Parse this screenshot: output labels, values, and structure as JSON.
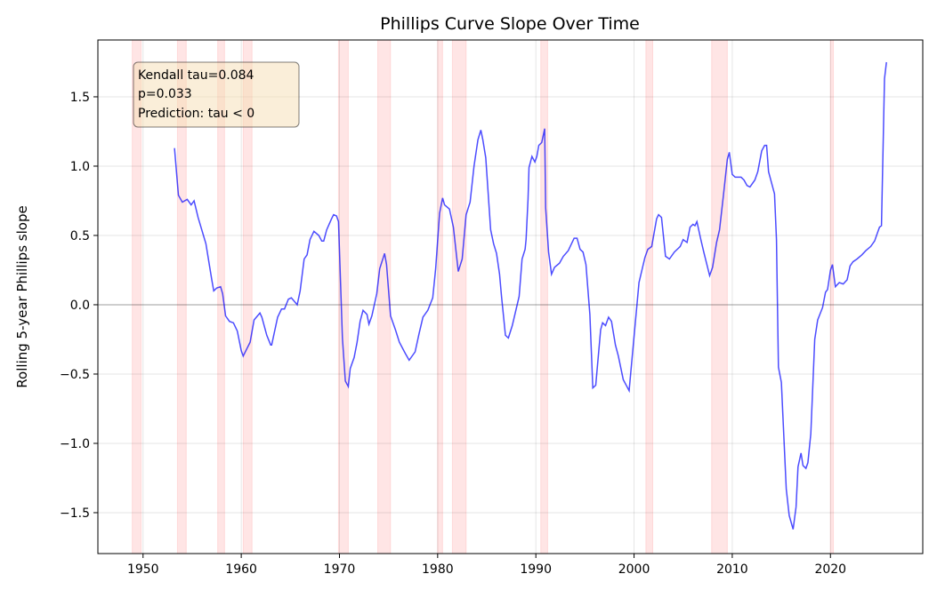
{
  "chart_data": {
    "type": "line",
    "title": "Phillips Curve Slope Over Time",
    "xlabel": "",
    "ylabel": "Rolling 5-year Phillips slope",
    "xlim": [
      1945.4,
      2029.4
    ],
    "ylim": [
      -1.795,
      1.91
    ],
    "xticks": [
      1950,
      1960,
      1970,
      1980,
      1990,
      2000,
      2010,
      2020
    ],
    "yticks": [
      -1.5,
      -1.0,
      -0.5,
      0.0,
      0.5,
      1.0,
      1.5
    ],
    "ytick_labels": [
      "−1.5",
      "−1.0",
      "−0.5",
      "0.0",
      "0.5",
      "1.0",
      "1.5"
    ],
    "grid": true,
    "reference_line_y": 0,
    "line_color": "#0000ff",
    "shading_color": "#ff0000",
    "annotation": [
      "Kendall tau=0.084",
      "p=0.033",
      "Prediction: tau < 0"
    ],
    "annotation_color": "#f5deb3",
    "shaded_periods": [
      [
        1948.9,
        1949.8
      ],
      [
        1953.5,
        1954.4
      ],
      [
        1957.6,
        1958.3
      ],
      [
        1960.2,
        1961.1
      ],
      [
        1969.9,
        1970.9
      ],
      [
        1973.9,
        1975.2
      ],
      [
        1980.0,
        1980.5
      ],
      [
        1981.5,
        1982.9
      ],
      [
        1990.5,
        1991.2
      ],
      [
        2001.2,
        2001.9
      ],
      [
        2007.9,
        2009.5
      ],
      [
        2020.0,
        2020.3
      ]
    ],
    "series": [
      {
        "x": [
          1953.2,
          1953.6,
          1954.0,
          1954.5,
          1954.9,
          1955.2,
          1955.6,
          1956.4,
          1957.0,
          1957.2,
          1957.5,
          1957.9,
          1958.1,
          1958.4,
          1958.8,
          1959.2,
          1959.6,
          1960.0,
          1960.2,
          1960.9,
          1961.3,
          1961.9,
          1962.1,
          1962.6,
          1963.0,
          1963.1,
          1963.7,
          1964.1,
          1964.4,
          1964.8,
          1965.1,
          1965.7,
          1966.0,
          1966.4,
          1966.7,
          1967.0,
          1967.4,
          1967.9,
          1968.2,
          1968.4,
          1968.7,
          1969.2,
          1969.4,
          1969.7,
          1969.9,
          1970.3,
          1970.6,
          1970.9,
          1971.1,
          1971.5,
          1971.8,
          1972.1,
          1972.4,
          1972.8,
          1973.0,
          1973.3,
          1973.8,
          1974.1,
          1974.6,
          1974.8,
          1975.2,
          1975.7,
          1976.1,
          1976.7,
          1977.1,
          1977.7,
          1978.1,
          1978.5,
          1979.0,
          1979.5,
          1979.8,
          1980.2,
          1980.5,
          1980.7,
          1981.2,
          1981.6,
          1982.1,
          1982.5,
          1982.9,
          1983.3,
          1983.7,
          1984.1,
          1984.4,
          1984.6,
          1984.9,
          1985.4,
          1985.7,
          1986.0,
          1986.3,
          1986.5,
          1986.9,
          1987.2,
          1987.6,
          1988.3,
          1988.6,
          1988.9,
          1989.0,
          1989.2,
          1989.3,
          1989.6,
          1989.9,
          1990.1,
          1990.3,
          1990.6,
          1990.9,
          1991.0,
          1991.3,
          1991.6,
          1991.9,
          1992.4,
          1992.8,
          1993.3,
          1993.9,
          1994.2,
          1994.5,
          1994.8,
          1995.1,
          1995.5,
          1995.8,
          1996.1,
          1996.6,
          1996.8,
          1997.1,
          1997.4,
          1997.7,
          1998.1,
          1998.4,
          1998.9,
          1999.5,
          1999.9,
          2000.5,
          2001.1,
          2001.4,
          2001.8,
          2002.3,
          2002.5,
          2002.8,
          2003.2,
          2003.6,
          2004.1,
          2004.7,
          2005.0,
          2005.4,
          2005.7,
          2006.0,
          2006.2,
          2006.4,
          2006.8,
          2007.1,
          2007.7,
          2008.0,
          2008.4,
          2008.7,
          2009.1,
          2009.5,
          2009.7,
          2010.0,
          2010.3,
          2010.9,
          2011.2,
          2011.5,
          2011.8,
          2012.3,
          2012.6,
          2013.0,
          2013.3,
          2013.5,
          2013.7,
          2014.3,
          2014.5,
          2014.7,
          2015.0,
          2015.5,
          2015.8,
          2016.2,
          2016.5,
          2016.7,
          2017.0,
          2017.2,
          2017.5,
          2017.7,
          2018.0,
          2018.4,
          2018.7,
          2019.2,
          2019.5,
          2019.7,
          2020.0,
          2020.2,
          2020.5,
          2020.9,
          2021.3,
          2021.7,
          2022.0,
          2022.3,
          2022.7,
          2023.2,
          2023.6,
          2024.1,
          2024.5,
          2024.8,
          2025.0,
          2025.2,
          2025.5,
          2025.7
        ],
        "y": [
          1.13,
          0.79,
          0.74,
          0.76,
          0.72,
          0.75,
          0.63,
          0.44,
          0.18,
          0.1,
          0.12,
          0.13,
          0.08,
          -0.08,
          -0.12,
          -0.13,
          -0.19,
          -0.33,
          -0.37,
          -0.27,
          -0.11,
          -0.06,
          -0.09,
          -0.22,
          -0.29,
          -0.29,
          -0.09,
          -0.03,
          -0.03,
          0.04,
          0.05,
          0.0,
          0.1,
          0.33,
          0.36,
          0.47,
          0.53,
          0.5,
          0.46,
          0.46,
          0.54,
          0.62,
          0.65,
          0.64,
          0.6,
          -0.24,
          -0.55,
          -0.59,
          -0.46,
          -0.38,
          -0.27,
          -0.12,
          -0.04,
          -0.07,
          -0.14,
          -0.08,
          0.08,
          0.26,
          0.37,
          0.29,
          -0.08,
          -0.18,
          -0.27,
          -0.35,
          -0.4,
          -0.34,
          -0.21,
          -0.09,
          -0.04,
          0.05,
          0.26,
          0.66,
          0.77,
          0.72,
          0.69,
          0.56,
          0.24,
          0.33,
          0.65,
          0.74,
          1.0,
          1.19,
          1.26,
          1.19,
          1.06,
          0.54,
          0.44,
          0.37,
          0.22,
          0.06,
          -0.22,
          -0.24,
          -0.15,
          0.06,
          0.33,
          0.4,
          0.47,
          0.76,
          0.99,
          1.07,
          1.03,
          1.07,
          1.15,
          1.17,
          1.27,
          0.7,
          0.38,
          0.22,
          0.27,
          0.3,
          0.35,
          0.39,
          0.48,
          0.48,
          0.4,
          0.38,
          0.29,
          -0.07,
          -0.6,
          -0.58,
          -0.18,
          -0.13,
          -0.15,
          -0.09,
          -0.12,
          -0.29,
          -0.37,
          -0.54,
          -0.62,
          -0.31,
          0.16,
          0.34,
          0.4,
          0.42,
          0.62,
          0.65,
          0.63,
          0.35,
          0.33,
          0.38,
          0.42,
          0.47,
          0.45,
          0.56,
          0.58,
          0.57,
          0.6,
          0.47,
          0.38,
          0.21,
          0.27,
          0.45,
          0.54,
          0.79,
          1.05,
          1.1,
          0.94,
          0.92,
          0.92,
          0.9,
          0.86,
          0.85,
          0.9,
          0.96,
          1.11,
          1.15,
          1.15,
          0.96,
          0.8,
          0.47,
          -0.45,
          -0.56,
          -1.33,
          -1.52,
          -1.62,
          -1.46,
          -1.17,
          -1.07,
          -1.16,
          -1.18,
          -1.14,
          -0.93,
          -0.25,
          -0.11,
          -0.02,
          0.09,
          0.11,
          0.25,
          0.29,
          0.13,
          0.16,
          0.15,
          0.18,
          0.28,
          0.31,
          0.33,
          0.36,
          0.39,
          0.42,
          0.46,
          0.52,
          0.56,
          0.57,
          1.63,
          1.75
        ]
      }
    ]
  }
}
